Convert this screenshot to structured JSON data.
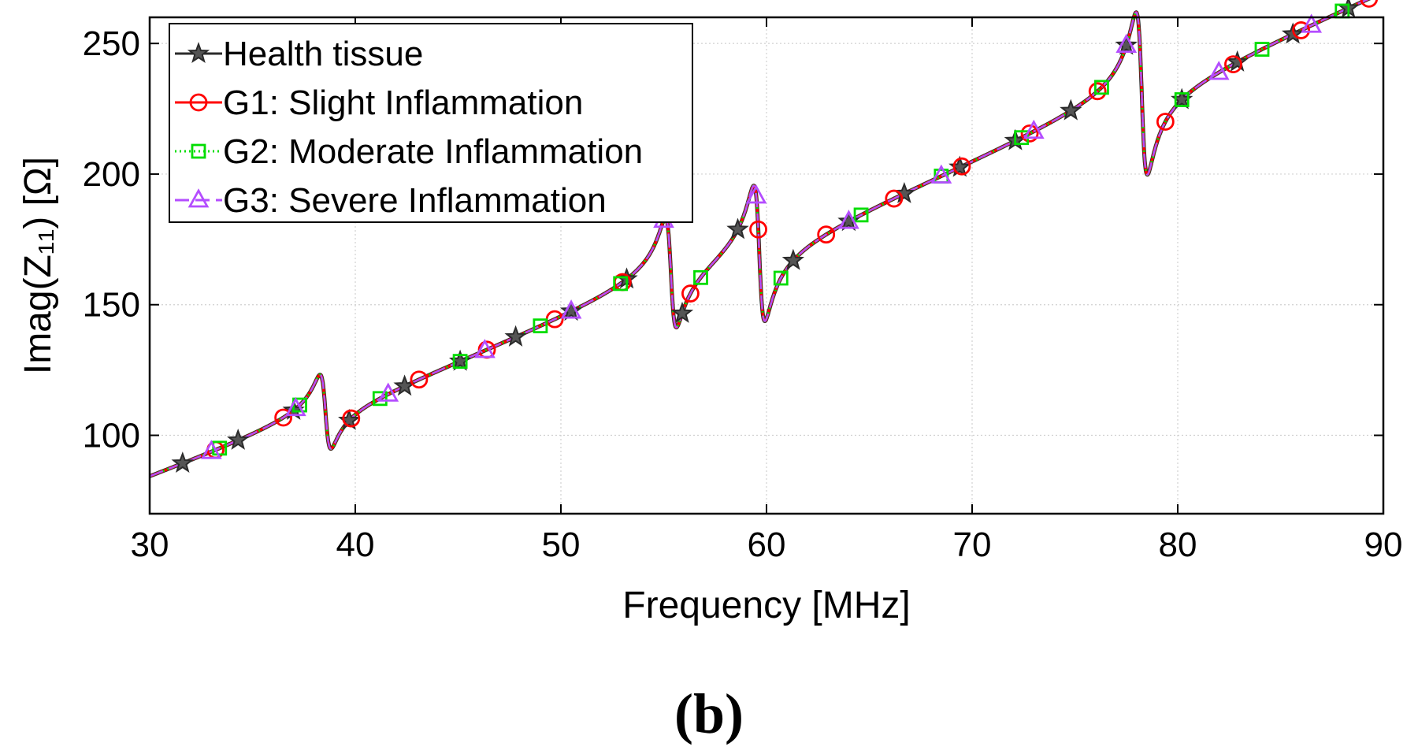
{
  "panel_label": "(b)",
  "chart_data": {
    "type": "line",
    "title": "",
    "xlabel": "Frequency [MHz]",
    "ylabel": "Imag(Z₁₁) [Ω]",
    "xlim": [
      30,
      90
    ],
    "ylim": [
      70,
      260
    ],
    "xticks": [
      30,
      40,
      50,
      60,
      70,
      80,
      90
    ],
    "yticks": [
      100,
      150,
      200,
      250
    ],
    "grid": true,
    "legend_position": "top-left",
    "baseline": [
      [
        30,
        82
      ],
      [
        33,
        90
      ],
      [
        35,
        95
      ],
      [
        37,
        102
      ],
      [
        38,
        107
      ],
      [
        40,
        106
      ],
      [
        42,
        114
      ],
      [
        44,
        120
      ],
      [
        46,
        127
      ],
      [
        48,
        133
      ],
      [
        50,
        139
      ],
      [
        52,
        147
      ],
      [
        53,
        151
      ],
      [
        54,
        158
      ],
      [
        55.5,
        132
      ],
      [
        57,
        155
      ],
      [
        58,
        165
      ],
      [
        59.7,
        134
      ],
      [
        61,
        158
      ],
      [
        63,
        170
      ],
      [
        65,
        177
      ],
      [
        67,
        185
      ],
      [
        69,
        192
      ],
      [
        71,
        198
      ],
      [
        73,
        206
      ],
      [
        75,
        214
      ],
      [
        76.5,
        221
      ],
      [
        78.6,
        186
      ],
      [
        80,
        215
      ],
      [
        82,
        226
      ],
      [
        84,
        234
      ],
      [
        86,
        242
      ],
      [
        88,
        249
      ],
      [
        90,
        256
      ]
    ],
    "resonances": [
      {
        "f": 38.55,
        "amplitude": 15
      },
      {
        "f": 55.35,
        "amplitude": 22
      },
      {
        "f": 59.65,
        "amplitude": 27
      },
      {
        "f": 78.25,
        "amplitude": 32
      }
    ],
    "series": [
      {
        "name": "Health tissue",
        "color": "#2b2b2b",
        "marker": "star",
        "linestyle": "solid",
        "marker_x": [
          31.6,
          34.3,
          37.0,
          39.7,
          42.4,
          45.1,
          47.8,
          50.5,
          53.2,
          55.9,
          58.6,
          61.3,
          64.0,
          66.7,
          69.4,
          72.1,
          74.8,
          77.5,
          80.2,
          82.9,
          85.6,
          88.3
        ]
      },
      {
        "name": "G1: Slight Inflammation",
        "color": "#ff0000",
        "marker": "circle",
        "linestyle": "solid",
        "marker_x": [
          33.2,
          36.5,
          39.8,
          43.1,
          46.4,
          49.7,
          53.0,
          56.3,
          59.6,
          62.9,
          66.2,
          69.5,
          72.8,
          76.1,
          79.4,
          82.7,
          86.0,
          89.3
        ]
      },
      {
        "name": "G2: Moderate Inflammation",
        "color": "#00dd00",
        "marker": "square",
        "linestyle": "dotted",
        "marker_x": [
          33.4,
          37.3,
          41.2,
          45.1,
          49.0,
          52.9,
          56.8,
          60.7,
          64.6,
          68.5,
          72.4,
          76.3,
          80.2,
          84.1,
          88.0
        ]
      },
      {
        "name": "G3: Severe Inflammation",
        "color": "#b44dff",
        "marker": "triangle",
        "linestyle": "dashed",
        "marker_x": [
          33.0,
          37.1,
          41.6,
          46.3,
          50.5,
          55.0,
          59.5,
          64.0,
          68.5,
          73.0,
          77.5,
          82.0,
          86.5
        ]
      }
    ]
  }
}
